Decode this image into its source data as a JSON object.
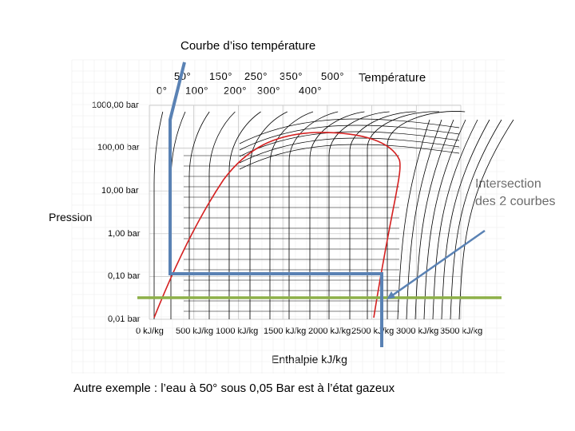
{
  "slide": {
    "title": "Courbe d’iso température",
    "temperature_label": "Température",
    "pression_label": "Pression",
    "enthalpy_label": "Enthalpie kJ/kg",
    "intersection_label_line1": "Intersection",
    "intersection_label_line2": "des 2 courbes",
    "caption": "Autre exemple : l’eau à 50° sous 0,05 Bar est à l’état gazeux"
  },
  "temperatures_top": [
    "50°",
    "150°",
    "250°",
    "350°",
    "500°"
  ],
  "temperatures_bottom": [
    "0°",
    "100°",
    "200°",
    "300°",
    "400°"
  ],
  "y_ticks": [
    "1000,00 bar",
    "100,00 bar",
    "10,00 bar",
    "1,00 bar",
    "0,10 bar",
    "0,01 bar"
  ],
  "x_ticks": [
    "0 kJ/kg",
    "500 kJ/kg",
    "1000 kJ/kg",
    "1500 kJ/kg",
    "2000 kJ/kg",
    "2500 kJ/kg",
    "3000 kJ/kg",
    "3500 kJ/kg"
  ],
  "colors": {
    "saturation_curve": "#d42020",
    "isotherms": "#000000",
    "highlight": "#5a82b4",
    "green_line": "#8db048",
    "grid": "#bfbfbf"
  }
}
